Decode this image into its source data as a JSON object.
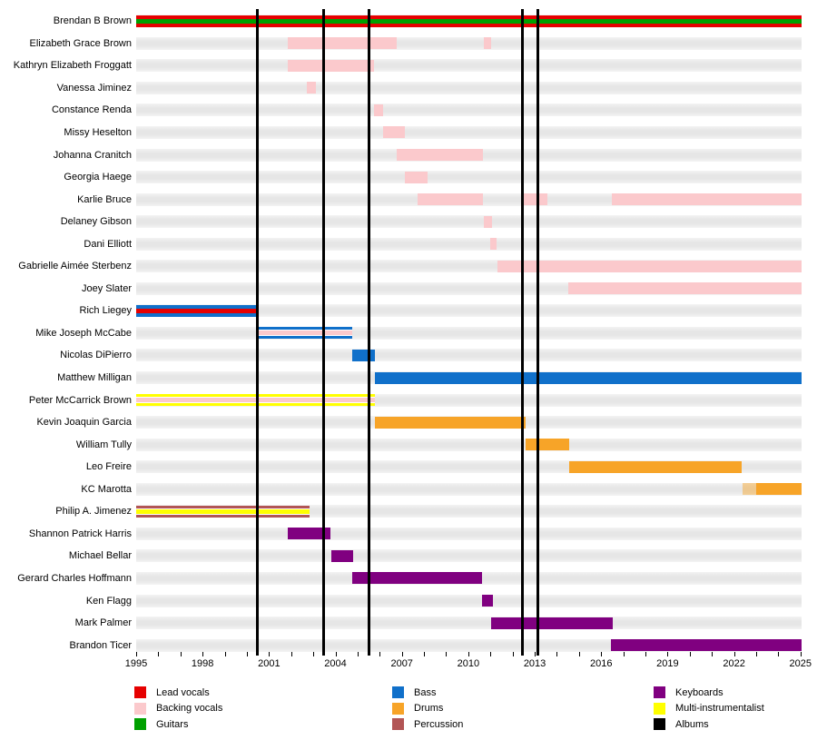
{
  "chart_data": {
    "type": "timeline",
    "description": "Band membership timeline showing each member's active years and roles, with vertical black lines marking album releases",
    "x_axis": {
      "min": 1995,
      "max": 2025.05,
      "labeled_ticks": [
        1995,
        1998,
        2001,
        2004,
        2007,
        2010,
        2013,
        2016,
        2019,
        2022,
        2025
      ],
      "minor_tick_step": 1
    },
    "album_markers": [
      2000.47,
      2003.47,
      2005.52,
      2012.44,
      2013.13
    ],
    "role_colors": {
      "Lead vocals": "#e60000",
      "Backing vocals": "#fbc9cc",
      "Guitars": "#00a000",
      "Bass": "#1070ca",
      "Drums": "#f7a428",
      "Percussion": "#b25555",
      "Keyboards": "#800080",
      "Multi-instrumentalist": "#ffff00",
      "Albums": "#000000"
    },
    "members": [
      {
        "name": "Brendan B Brown",
        "roles": [
          "Lead vocals",
          "Guitars"
        ],
        "segments": [
          {
            "start": 1995,
            "end": 2025.05
          }
        ]
      },
      {
        "name": "Elizabeth Grace Brown",
        "roles": [
          "Backing vocals"
        ],
        "segments": [
          {
            "start": 2001.85,
            "end": 2006.77
          },
          {
            "start": 2010.7,
            "end": 2011.05
          }
        ]
      },
      {
        "name": "Kathryn Elizabeth Froggatt",
        "roles": [
          "Backing vocals"
        ],
        "segments": [
          {
            "start": 2001.85,
            "end": 2005.74
          }
        ]
      },
      {
        "name": "Vanessa Jiminez",
        "roles": [
          "Backing vocals"
        ],
        "segments": [
          {
            "start": 2002.7,
            "end": 2003.1
          }
        ]
      },
      {
        "name": "Constance Renda",
        "roles": [
          "Backing vocals"
        ],
        "segments": [
          {
            "start": 2005.74,
            "end": 2006.15
          }
        ]
      },
      {
        "name": "Missy Heselton",
        "roles": [
          "Backing vocals"
        ],
        "segments": [
          {
            "start": 2006.15,
            "end": 2007.13
          }
        ]
      },
      {
        "name": "Johanna Cranitch",
        "roles": [
          "Backing vocals"
        ],
        "segments": [
          {
            "start": 2006.77,
            "end": 2010.66
          }
        ]
      },
      {
        "name": "Georgia Haege",
        "roles": [
          "Backing vocals"
        ],
        "segments": [
          {
            "start": 2007.13,
            "end": 2008.16
          }
        ]
      },
      {
        "name": "Karlie Bruce",
        "roles": [
          "Backing vocals"
        ],
        "segments": [
          {
            "start": 2007.7,
            "end": 2010.66
          },
          {
            "start": 2012.5,
            "end": 2013.56
          },
          {
            "start": 2016.49,
            "end": 2025.05
          }
        ]
      },
      {
        "name": "Delaney Gibson",
        "roles": [
          "Backing vocals"
        ],
        "segments": [
          {
            "start": 2010.7,
            "end": 2011.07
          }
        ]
      },
      {
        "name": "Dani Elliott",
        "roles": [
          "Backing vocals"
        ],
        "segments": [
          {
            "start": 2011.0,
            "end": 2011.28
          }
        ]
      },
      {
        "name": "Gabrielle Aimée Sterbenz",
        "roles": [
          "Backing vocals"
        ],
        "segments": [
          {
            "start": 2011.32,
            "end": 2025.05
          }
        ]
      },
      {
        "name": "Joey Slater",
        "roles": [
          "Backing vocals"
        ],
        "segments": [
          {
            "start": 2014.52,
            "end": 2025.05
          }
        ]
      },
      {
        "name": "Rich Liegey",
        "roles": [
          "Bass",
          "Lead vocals"
        ],
        "segments": [
          {
            "start": 1995,
            "end": 2000.53
          }
        ]
      },
      {
        "name": "Mike Joseph McCabe",
        "roles": [
          "Bass",
          "Backing vocals"
        ],
        "inner_gap": true,
        "segments": [
          {
            "start": 2000.53,
            "end": 2004.76
          }
        ]
      },
      {
        "name": "Nicolas DiPierro",
        "roles": [
          "Bass"
        ],
        "segments": [
          {
            "start": 2004.76,
            "end": 2005.78
          }
        ]
      },
      {
        "name": "Matthew Milligan",
        "roles": [
          "Bass"
        ],
        "segments": [
          {
            "start": 2005.78,
            "end": 2025.05
          }
        ]
      },
      {
        "name": "Peter McCarrick Brown",
        "roles": [
          "Multi-instrumentalist",
          "Backing vocals"
        ],
        "inner_gap": true,
        "segments": [
          {
            "start": 1995,
            "end": 2005.78
          }
        ]
      },
      {
        "name": "Kevin Joaquin Garcia",
        "roles": [
          "Drums"
        ],
        "segments": [
          {
            "start": 2005.78,
            "end": 2012.59
          }
        ]
      },
      {
        "name": "William Tully",
        "roles": [
          "Drums"
        ],
        "segments": [
          {
            "start": 2012.59,
            "end": 2014.56
          }
        ]
      },
      {
        "name": "Leo Freire",
        "roles": [
          "Drums"
        ],
        "segments": [
          {
            "start": 2014.56,
            "end": 2022.35
          }
        ]
      },
      {
        "name": "KC Marotta",
        "roles": [
          "Drums"
        ],
        "segments": [
          {
            "start": 2022.39,
            "end": 2023.0,
            "variant": "light"
          },
          {
            "start": 2023.0,
            "end": 2025.05
          }
        ]
      },
      {
        "name": "Philip A. Jimenez",
        "roles": [
          "Percussion",
          "Multi-instrumentalist"
        ],
        "inner_gap": true,
        "segments": [
          {
            "start": 1995,
            "end": 2002.83
          }
        ]
      },
      {
        "name": "Shannon Patrick Harris",
        "roles": [
          "Keyboards"
        ],
        "segments": [
          {
            "start": 2001.85,
            "end": 2003.77
          }
        ]
      },
      {
        "name": "Michael Bellar",
        "roles": [
          "Keyboards"
        ],
        "segments": [
          {
            "start": 2003.81,
            "end": 2004.8
          }
        ]
      },
      {
        "name": "Gerard Charles Hoffmann",
        "roles": [
          "Keyboards"
        ],
        "segments": [
          {
            "start": 2004.76,
            "end": 2010.62
          }
        ]
      },
      {
        "name": "Ken Flagg",
        "roles": [
          "Keyboards"
        ],
        "segments": [
          {
            "start": 2010.62,
            "end": 2011.11
          }
        ]
      },
      {
        "name": "Mark Palmer",
        "roles": [
          "Keyboards"
        ],
        "segments": [
          {
            "start": 2011.03,
            "end": 2016.53
          }
        ]
      },
      {
        "name": "Brandon Ticer",
        "roles": [
          "Keyboards"
        ],
        "segments": [
          {
            "start": 2016.45,
            "end": 2025.05
          }
        ]
      }
    ],
    "legend": {
      "columns": [
        {
          "items": [
            {
              "label": "Lead vocals",
              "color": "#e60000"
            },
            {
              "label": "Backing vocals",
              "color": "#fbc9cc"
            },
            {
              "label": "Guitars",
              "color": "#00a000"
            }
          ]
        },
        {
          "items": [
            {
              "label": "Bass",
              "color": "#1070ca"
            },
            {
              "label": "Drums",
              "color": "#f7a428"
            },
            {
              "label": "Percussion",
              "color": "#b25555"
            }
          ]
        },
        {
          "items": [
            {
              "label": "Keyboards",
              "color": "#800080"
            },
            {
              "label": "Multi-instrumentalist",
              "color": "#ffff00"
            },
            {
              "label": "Albums",
              "color": "#000000"
            }
          ]
        }
      ]
    }
  }
}
